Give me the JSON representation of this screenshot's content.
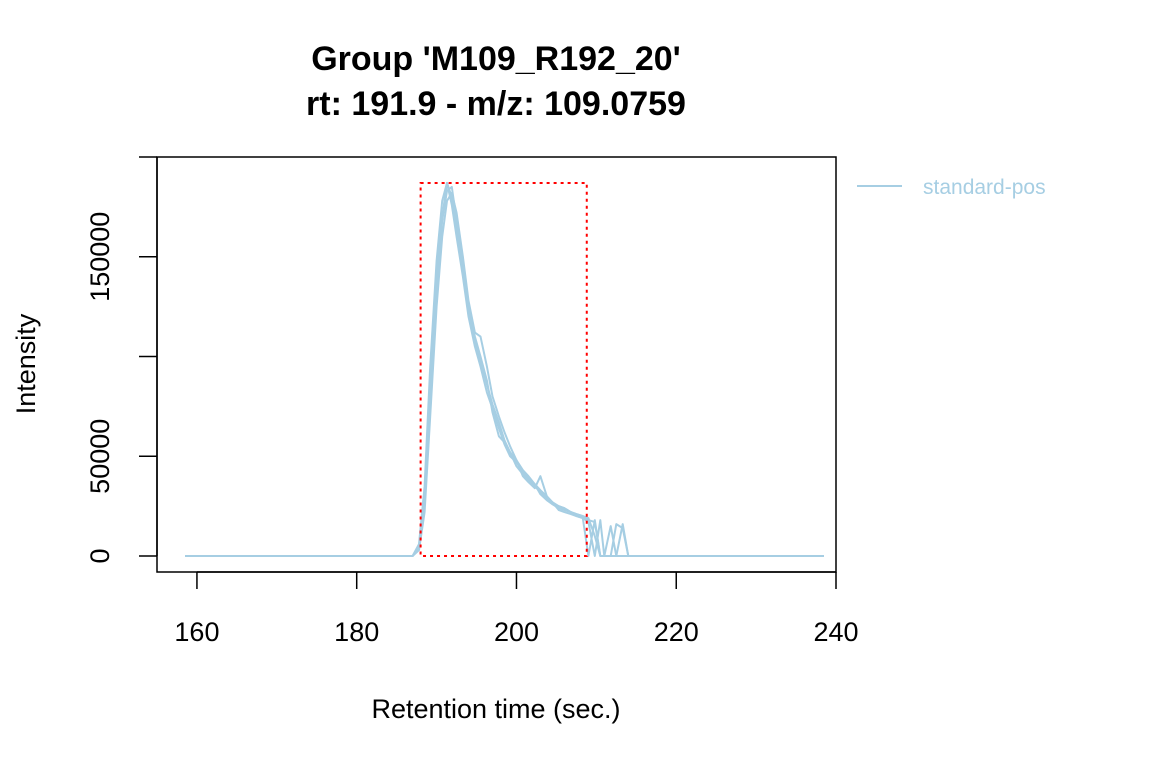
{
  "chart_data": {
    "type": "line",
    "title": "Group 'M109_R192_20'",
    "subtitle": "rt: 191.9 - m/z: 109.0759",
    "xlabel": "Retention time (sec.)",
    "ylabel": "Intensity",
    "xlim": [
      155,
      240
    ],
    "ylim": [
      -8000,
      200000
    ],
    "xticks": [
      160,
      180,
      200,
      220,
      240
    ],
    "yticks": [
      0,
      50000,
      100000,
      150000,
      200000
    ],
    "yticklabels": [
      "0",
      "50000",
      "",
      "150000",
      ""
    ],
    "grid": false,
    "legend": {
      "position": "top-right, outside plot",
      "entries": [
        "standard-pos"
      ]
    },
    "series_color": "#a6cee3",
    "rect_color": "#ff0000",
    "peak_rect": {
      "xmin": 188.0,
      "xmax": 208.8,
      "ymin": 0,
      "ymax": 187000
    },
    "series": [
      {
        "name": "standard-pos",
        "x": [
          158.5,
          186.0,
          187.0,
          187.8,
          188.5,
          189.2,
          190.0,
          190.7,
          191.3,
          191.9,
          192.5,
          193.3,
          194.0,
          194.8,
          195.5,
          196.3,
          197.0,
          197.8,
          198.5,
          199.2,
          200.0,
          200.8,
          201.5,
          202.3,
          203.0,
          203.8,
          204.5,
          205.3,
          206.0,
          206.8,
          207.5,
          208.3,
          209.0,
          209.8,
          210.5,
          211.0,
          211.8,
          212.5,
          213.3,
          214.0,
          215.0,
          238.5
        ],
        "values": [
          0,
          0,
          0,
          5000,
          30000,
          85000,
          140000,
          170000,
          187000,
          180000,
          165000,
          145000,
          125000,
          108000,
          98000,
          86000,
          76000,
          67000,
          58000,
          52000,
          45000,
          41000,
          38000,
          35000,
          32000,
          29000,
          27000,
          25000,
          24000,
          22000,
          21000,
          20000,
          19000,
          10000,
          0,
          0,
          0,
          0,
          0,
          0,
          0,
          0
        ]
      },
      {
        "name": "standard-pos",
        "x": [
          158.5,
          186.0,
          187.0,
          187.8,
          188.5,
          189.2,
          190.0,
          190.7,
          191.3,
          191.9,
          192.5,
          193.3,
          194.0,
          194.8,
          195.5,
          196.3,
          197.0,
          197.8,
          198.5,
          199.2,
          200.0,
          200.8,
          201.5,
          202.3,
          203.0,
          203.8,
          204.5,
          205.3,
          206.0,
          206.8,
          207.5,
          208.3,
          209.0,
          209.8,
          210.5,
          211.0,
          211.8,
          212.5,
          213.3,
          214.0,
          215.0,
          238.5
        ],
        "values": [
          0,
          0,
          0,
          3000,
          22000,
          70000,
          125000,
          160000,
          178000,
          182000,
          172000,
          150000,
          128000,
          112000,
          110000,
          95000,
          80000,
          70000,
          62000,
          55000,
          48000,
          43000,
          40000,
          36000,
          33000,
          30000,
          26000,
          24000,
          23000,
          22000,
          21000,
          20000,
          18000,
          17000,
          0,
          0,
          15000,
          0,
          0,
          0,
          0,
          0
        ]
      },
      {
        "name": "standard-pos",
        "x": [
          158.5,
          186.0,
          187.0,
          187.8,
          188.5,
          189.2,
          190.0,
          190.7,
          191.3,
          191.9,
          192.5,
          193.3,
          194.0,
          194.8,
          195.5,
          196.3,
          197.0,
          197.8,
          198.5,
          199.2,
          200.0,
          200.8,
          201.5,
          202.3,
          203.0,
          203.8,
          204.5,
          205.3,
          206.0,
          206.8,
          207.5,
          208.3,
          209.0,
          209.8,
          210.5,
          211.0,
          211.8,
          212.5,
          213.3,
          214.0,
          215.0,
          238.5
        ],
        "values": [
          0,
          0,
          0,
          6000,
          35000,
          95000,
          148000,
          178000,
          187000,
          176000,
          160000,
          140000,
          120000,
          105000,
          95000,
          82000,
          74000,
          64000,
          56000,
          50000,
          47000,
          42000,
          39000,
          36000,
          31000,
          28000,
          26000,
          25000,
          24000,
          22000,
          20000,
          19000,
          0,
          18000,
          0,
          0,
          0,
          16000,
          14000,
          0,
          0,
          0
        ]
      },
      {
        "name": "standard-pos",
        "x": [
          158.5,
          186.0,
          187.0,
          187.8,
          188.5,
          189.2,
          190.0,
          190.7,
          191.3,
          191.9,
          192.5,
          193.3,
          194.0,
          194.8,
          195.5,
          196.3,
          197.0,
          197.8,
          198.5,
          199.2,
          200.0,
          200.8,
          201.5,
          202.3,
          203.0,
          203.8,
          204.5,
          205.3,
          206.0,
          206.8,
          207.5,
          208.3,
          209.0,
          209.8,
          210.5,
          211.0,
          211.8,
          212.5,
          213.3,
          214.0,
          215.0,
          238.5
        ],
        "values": [
          0,
          0,
          0,
          4000,
          28000,
          80000,
          135000,
          168000,
          183000,
          185000,
          168000,
          148000,
          124000,
          110000,
          100000,
          88000,
          72000,
          60000,
          57000,
          52000,
          48000,
          40000,
          37000,
          34000,
          40000,
          30000,
          27000,
          23000,
          22000,
          21000,
          20000,
          19000,
          17000,
          0,
          18000,
          0,
          0,
          0,
          16000,
          0,
          0,
          0
        ]
      }
    ]
  }
}
